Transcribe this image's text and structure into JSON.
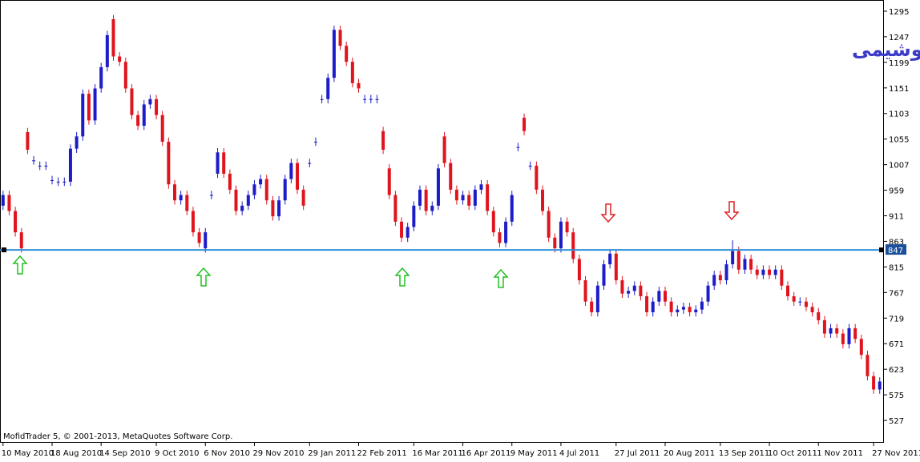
{
  "chart_data": {
    "type": "candlestick",
    "title": "سرمایه گذاری پتروشیمی",
    "footer": "MofidTrader 5, © 2001-2013, MetaQuotes Software Corp.",
    "up_color": "#1c1cc8",
    "down_color": "#e0141e",
    "level": 847,
    "level_color": "#2f8fd8",
    "ylim": [
      485,
      1316
    ],
    "yticks": [
      527,
      575,
      623,
      671,
      719,
      767,
      815,
      863,
      911,
      959,
      1007,
      1055,
      1103,
      1151,
      1199,
      1247,
      1295
    ],
    "categories": [
      "10 May 2010",
      null,
      null,
      null,
      null,
      null,
      null,
      null,
      "18 Aug 2010",
      null,
      null,
      null,
      null,
      null,
      null,
      null,
      "14 Sep 2010",
      null,
      null,
      null,
      null,
      null,
      null,
      null,
      null,
      "9 Oct 2010",
      null,
      null,
      null,
      null,
      null,
      null,
      null,
      "6 Nov 2010",
      null,
      null,
      null,
      null,
      null,
      null,
      null,
      "29 Nov 2010",
      null,
      null,
      null,
      null,
      null,
      null,
      null,
      null,
      "29 Jan 2011",
      null,
      null,
      null,
      null,
      null,
      null,
      null,
      "22 Feb 2011",
      null,
      null,
      null,
      null,
      null,
      null,
      null,
      null,
      "16 Mar 2011",
      null,
      null,
      null,
      null,
      null,
      null,
      null,
      "16 Apr 2011",
      null,
      null,
      null,
      null,
      null,
      null,
      null,
      "9 May 2011",
      null,
      null,
      null,
      null,
      null,
      null,
      null,
      "4 Jul 2011",
      null,
      null,
      null,
      null,
      null,
      null,
      null,
      null,
      "27 Jul 2011",
      null,
      null,
      null,
      null,
      null,
      null,
      null,
      "20 Aug 2011",
      null,
      null,
      null,
      null,
      null,
      null,
      null,
      null,
      "13 Sep 2011",
      null,
      null,
      null,
      null,
      null,
      null,
      null,
      "10 Oct 2011",
      null,
      null,
      null,
      null,
      null,
      null,
      null,
      "1 Nov 2011",
      null,
      null,
      null,
      null,
      null,
      null,
      null,
      null,
      "27 Nov 2011",
      null
    ],
    "open": [
      930,
      950,
      920,
      880,
      1068,
      1015,
      1005,
      1005,
      978,
      975,
      975,
      975,
      1037,
      1060,
      1140,
      1090,
      1150,
      1190,
      1280,
      1210,
      1200,
      1150,
      1100,
      1080,
      1120,
      1130,
      1100,
      1050,
      970,
      940,
      950,
      920,
      880,
      850,
      950,
      990,
      1030,
      990,
      960,
      920,
      930,
      950,
      970,
      980,
      940,
      910,
      940,
      980,
      1010,
      960,
      1010,
      1050,
      1130,
      1130,
      1170,
      1260,
      1230,
      1200,
      1160,
      1130,
      1130,
      1130,
      1070,
      1000,
      950,
      900,
      870,
      890,
      930,
      960,
      920,
      930,
      1060,
      1010,
      960,
      940,
      950,
      930,
      960,
      970,
      920,
      880,
      860,
      900,
      1040,
      1095,
      1005,
      1005,
      960,
      920,
      870,
      850,
      900,
      880,
      830,
      790,
      750,
      730,
      780,
      820,
      840,
      790,
      765,
      770,
      780,
      760,
      730,
      750,
      770,
      750,
      730,
      735,
      740,
      730,
      735,
      750,
      780,
      800,
      790,
      820,
      845,
      810,
      830,
      810,
      800,
      810,
      800,
      810,
      780,
      760,
      750,
      750,
      740,
      730,
      715,
      690,
      700,
      690,
      670,
      700,
      680,
      650,
      610,
      585
    ],
    "high": [
      958,
      958,
      928,
      888,
      1076,
      1023,
      1013,
      1013,
      986,
      983,
      983,
      1045,
      1068,
      1148,
      1148,
      1158,
      1198,
      1258,
      1288,
      1218,
      1208,
      1158,
      1108,
      1128,
      1138,
      1138,
      1108,
      1058,
      978,
      958,
      958,
      928,
      888,
      888,
      958,
      1038,
      1038,
      998,
      968,
      938,
      958,
      978,
      988,
      988,
      948,
      948,
      988,
      1018,
      1018,
      968,
      1018,
      1058,
      1138,
      1178,
      1268,
      1268,
      1238,
      1208,
      1168,
      1138,
      1138,
      1138,
      1078,
      1008,
      958,
      908,
      898,
      938,
      968,
      968,
      938,
      1008,
      1068,
      1018,
      968,
      958,
      958,
      968,
      978,
      978,
      928,
      888,
      908,
      958,
      1048,
      1103,
      1013,
      1013,
      968,
      928,
      878,
      908,
      908,
      888,
      838,
      798,
      758,
      788,
      828,
      848,
      848,
      798,
      778,
      788,
      788,
      768,
      758,
      778,
      778,
      758,
      743,
      748,
      748,
      743,
      758,
      788,
      808,
      808,
      828,
      865,
      853,
      838,
      838,
      818,
      818,
      818,
      818,
      818,
      788,
      768,
      758,
      758,
      748,
      738,
      723,
      708,
      708,
      698,
      708,
      708,
      688,
      658,
      618,
      608
    ],
    "low": [
      922,
      912,
      872,
      842,
      1027,
      1007,
      997,
      997,
      970,
      967,
      967,
      967,
      1029,
      1052,
      1082,
      1082,
      1142,
      1182,
      1202,
      1192,
      1142,
      1092,
      1072,
      1072,
      1112,
      1092,
      1042,
      962,
      932,
      932,
      912,
      872,
      852,
      842,
      942,
      982,
      982,
      952,
      912,
      912,
      922,
      942,
      962,
      932,
      902,
      902,
      932,
      972,
      952,
      922,
      1002,
      1042,
      1122,
      1122,
      1162,
      1222,
      1192,
      1152,
      1142,
      1122,
      1122,
      1122,
      1027,
      942,
      892,
      862,
      862,
      882,
      922,
      912,
      912,
      922,
      1002,
      952,
      932,
      932,
      922,
      922,
      952,
      912,
      872,
      852,
      852,
      892,
      1032,
      1062,
      997,
      952,
      912,
      862,
      842,
      842,
      872,
      822,
      782,
      742,
      722,
      722,
      772,
      812,
      782,
      757,
      757,
      762,
      752,
      722,
      722,
      742,
      742,
      722,
      722,
      727,
      722,
      722,
      727,
      742,
      772,
      782,
      782,
      812,
      802,
      802,
      802,
      792,
      792,
      792,
      792,
      772,
      752,
      742,
      742,
      732,
      722,
      707,
      682,
      682,
      682,
      662,
      662,
      672,
      642,
      602,
      577,
      577
    ],
    "close": [
      950,
      920,
      880,
      850,
      1035,
      1015,
      1005,
      1005,
      978,
      975,
      975,
      1037,
      1060,
      1140,
      1090,
      1150,
      1190,
      1250,
      1210,
      1200,
      1150,
      1100,
      1080,
      1120,
      1130,
      1100,
      1050,
      970,
      940,
      950,
      920,
      880,
      860,
      880,
      950,
      1030,
      990,
      960,
      920,
      930,
      950,
      970,
      980,
      940,
      910,
      940,
      980,
      1010,
      960,
      930,
      1010,
      1050,
      1130,
      1170,
      1260,
      1230,
      1200,
      1160,
      1150,
      1130,
      1130,
      1130,
      1035,
      950,
      900,
      870,
      890,
      930,
      960,
      920,
      930,
      1000,
      1010,
      960,
      940,
      950,
      930,
      960,
      970,
      920,
      880,
      860,
      900,
      950,
      1040,
      1070,
      1005,
      960,
      920,
      870,
      850,
      900,
      880,
      830,
      790,
      750,
      730,
      780,
      820,
      840,
      790,
      765,
      770,
      780,
      760,
      730,
      750,
      770,
      750,
      730,
      735,
      740,
      730,
      735,
      750,
      780,
      800,
      790,
      820,
      845,
      810,
      830,
      810,
      800,
      810,
      800,
      810,
      780,
      760,
      750,
      750,
      740,
      730,
      715,
      690,
      700,
      690,
      670,
      700,
      680,
      650,
      610,
      585,
      600
    ]
  }
}
